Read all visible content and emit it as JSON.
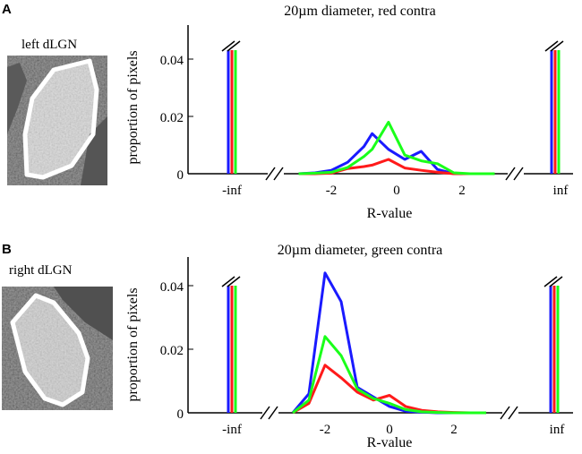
{
  "colors": {
    "blue": "#1a1aff",
    "red": "#ff1a1a",
    "green": "#1aff1a",
    "axis": "#000000"
  },
  "panels": [
    {
      "letter": "A",
      "slice_label": "left dLGN",
      "chart_data": {
        "type": "line",
        "title": "20µm diameter, red contra",
        "xlabel": "R-value",
        "ylabel": "proportion of pixels",
        "ylim": [
          0,
          0.05
        ],
        "yticks": [
          0,
          0.02,
          0.04
        ],
        "ytick_labels": [
          "0",
          "0.02",
          "0.04"
        ],
        "xlim": [
          -3.5,
          3.5
        ],
        "xticks": [
          -2,
          0,
          2
        ],
        "xtick_labels": [
          "-2",
          "0",
          "2"
        ],
        "inf_labels": [
          "-inf",
          "inf"
        ],
        "x": [
          -3,
          -2.5,
          -2,
          -1.5,
          -1,
          -0.75,
          -0.25,
          0.25,
          0.75,
          1.25,
          1.75,
          2.25,
          3
        ],
        "series": [
          {
            "name": "blue",
            "color": "#1a1aff",
            "neg_inf": 0.044,
            "pos_inf": 0.044,
            "values": [
              0,
              0.0003,
              0.0012,
              0.004,
              0.0095,
              0.014,
              0.0085,
              0.005,
              0.0078,
              0.0015,
              0,
              0,
              0
            ]
          },
          {
            "name": "red",
            "color": "#ff1a1a",
            "neg_inf": 0.044,
            "pos_inf": 0.044,
            "values": [
              0,
              0,
              0.0002,
              0.0018,
              0.0025,
              0.003,
              0.005,
              0.002,
              0.0012,
              0.0005,
              0,
              0,
              0
            ]
          },
          {
            "name": "green",
            "color": "#1aff1a",
            "neg_inf": 0.044,
            "pos_inf": 0.044,
            "values": [
              0,
              0.0002,
              0.0005,
              0.0022,
              0.006,
              0.0085,
              0.018,
              0.0065,
              0.0045,
              0.0035,
              0.0003,
              0,
              0
            ]
          }
        ]
      }
    },
    {
      "letter": "B",
      "slice_label": "right dLGN",
      "chart_data": {
        "type": "line",
        "title": "20µm diameter, green contra",
        "xlabel": "R-value",
        "ylabel": "proportion of pixels",
        "ylim": [
          0,
          0.05
        ],
        "yticks": [
          0,
          0.02,
          0.04
        ],
        "ytick_labels": [
          "0",
          "0.02",
          "0.04"
        ],
        "xlim": [
          -3.5,
          3.5
        ],
        "xticks": [
          -2,
          0,
          2
        ],
        "xtick_labels": [
          "-2",
          "0",
          "2"
        ],
        "inf_labels": [
          "-inf",
          "inf"
        ],
        "x": [
          -3,
          -2.5,
          -2,
          -1.5,
          -1,
          -0.5,
          0,
          0.5,
          1,
          1.5,
          2,
          2.5,
          3
        ],
        "series": [
          {
            "name": "blue",
            "color": "#1a1aff",
            "neg_inf": 0.042,
            "pos_inf": 0.042,
            "values": [
              0,
              0.006,
              0.044,
              0.035,
              0.008,
              0.005,
              0.002,
              0.0005,
              0.0002,
              0,
              0,
              0,
              0
            ]
          },
          {
            "name": "red",
            "color": "#ff1a1a",
            "neg_inf": 0.042,
            "pos_inf": 0.042,
            "values": [
              0,
              0.003,
              0.015,
              0.011,
              0.0065,
              0.004,
              0.0055,
              0.002,
              0.0008,
              0.0003,
              0.0001,
              0,
              0
            ]
          },
          {
            "name": "green",
            "color": "#1aff1a",
            "neg_inf": 0.042,
            "pos_inf": 0.042,
            "values": [
              0,
              0.004,
              0.024,
              0.018,
              0.0075,
              0.0045,
              0.003,
              0.001,
              0.0003,
              0.0001,
              0,
              0,
              0
            ]
          }
        ]
      }
    }
  ]
}
